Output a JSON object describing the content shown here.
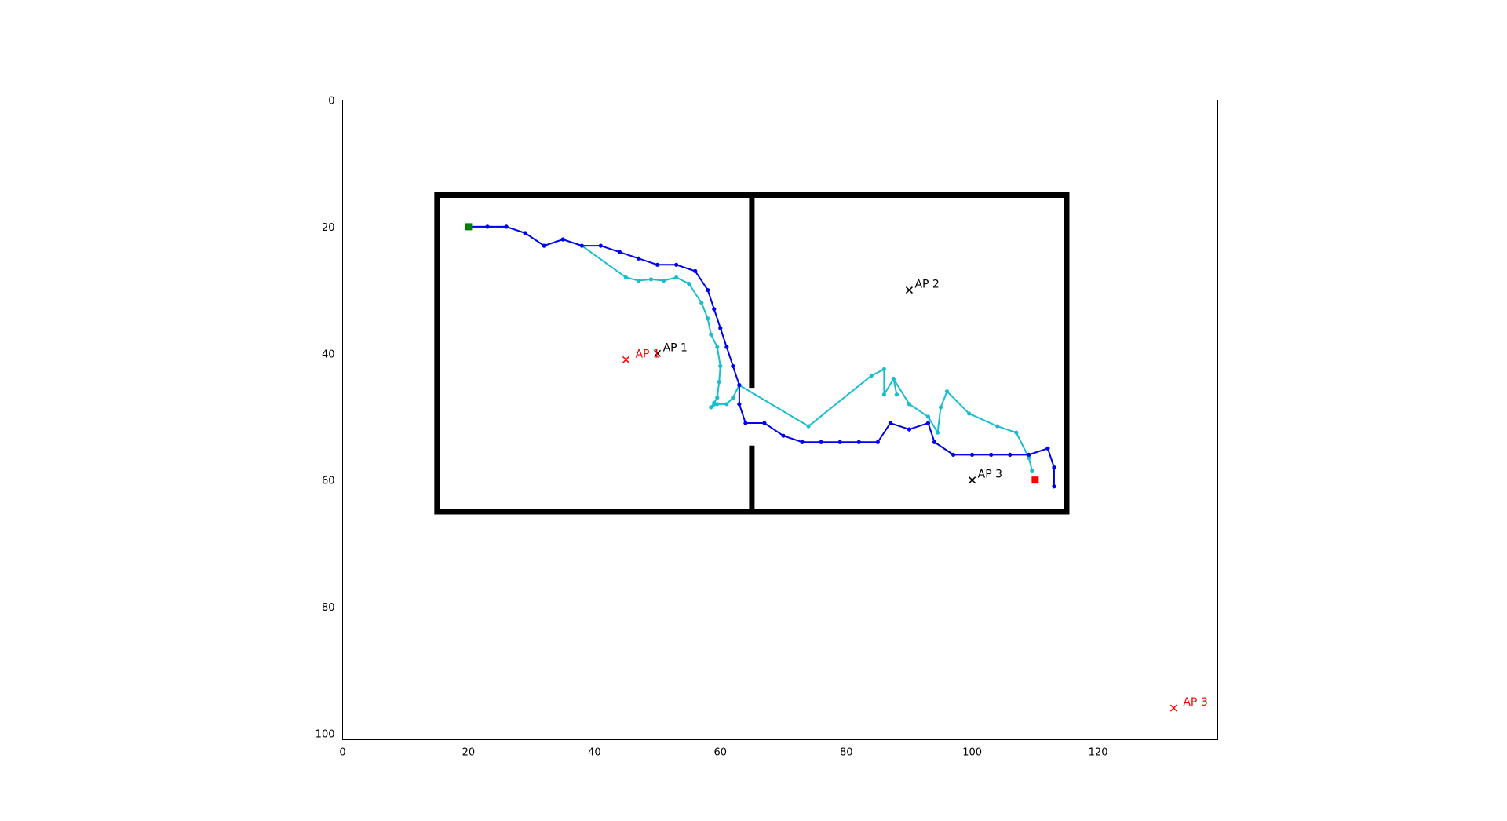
{
  "chart_data": {
    "type": "line",
    "title": "",
    "xlabel": "",
    "ylabel": "",
    "xlim": [
      0,
      139
    ],
    "ylim": [
      101,
      0
    ],
    "y_inverted": true,
    "grid": false,
    "legend": "none",
    "x_ticks": [
      0,
      20,
      40,
      60,
      80,
      100,
      120
    ],
    "y_ticks": [
      0,
      20,
      40,
      60,
      80,
      100
    ],
    "x_tick_labels": [
      "0",
      "20",
      "40",
      "60",
      "80",
      "100",
      "120"
    ],
    "y_tick_labels": [
      "0",
      "20",
      "40",
      "60",
      "80",
      "100"
    ],
    "walls": [
      {
        "x": [
          15,
          115,
          115,
          15,
          15
        ],
        "y": [
          15,
          15,
          65,
          65,
          15
        ]
      },
      {
        "x": [
          65,
          65
        ],
        "y": [
          15,
          45
        ]
      },
      {
        "x": [
          65,
          65
        ],
        "y": [
          55,
          65
        ]
      }
    ],
    "wall_color": "#000000",
    "start": {
      "x": 20,
      "y": 20,
      "color": "#007f00"
    },
    "end": {
      "x": 110,
      "y": 60,
      "color": "#ff0000"
    },
    "access_points": [
      {
        "label": "AP 1",
        "x": 50,
        "y": 40,
        "color": "#000000"
      },
      {
        "label": "AP 2",
        "x": 90,
        "y": 30,
        "color": "#000000"
      },
      {
        "label": "AP 3",
        "x": 100,
        "y": 60,
        "color": "#000000"
      },
      {
        "label": "AP 1",
        "x": 45,
        "y": 41,
        "color": "#ff0000"
      },
      {
        "label": "AP 3",
        "x": 132,
        "y": 96,
        "color": "#ff0000"
      }
    ],
    "series": [
      {
        "color": "#0000ee",
        "x": [
          20,
          23,
          26,
          29,
          32,
          35,
          38,
          41,
          44,
          47,
          50,
          53,
          56,
          58,
          59,
          60,
          61,
          62,
          63,
          63,
          64,
          67,
          70,
          73,
          76,
          79,
          82,
          85,
          87,
          90,
          93,
          94,
          97,
          100,
          103,
          106,
          109,
          112,
          113,
          113
        ],
        "y": [
          20,
          20,
          20,
          21,
          23,
          22,
          23,
          23,
          24,
          25,
          26,
          26,
          27,
          30,
          33,
          36,
          39,
          42,
          45,
          48,
          51,
          51,
          53,
          54,
          54,
          54,
          54,
          54,
          51,
          52,
          51,
          54,
          56,
          56,
          56,
          56,
          56,
          55,
          58,
          61
        ]
      },
      {
        "color": "#17becf",
        "x": [
          20,
          23,
          26,
          29,
          32,
          35,
          38,
          45,
          47,
          49,
          51,
          53,
          55,
          57,
          58,
          58.5,
          59.5,
          60,
          59.8,
          59.5,
          59,
          58.5,
          59.5,
          61,
          62,
          63,
          74,
          84,
          86,
          86,
          87.5,
          88,
          87.5,
          90,
          93,
          94.5,
          95,
          96,
          99.5,
          104,
          107,
          109,
          109.5
        ],
        "y": [
          20,
          20,
          20,
          21,
          23,
          22,
          23,
          28,
          28.5,
          28.3,
          28.5,
          28,
          29,
          32,
          34.5,
          37,
          39,
          42,
          44.5,
          47,
          47.8,
          48.5,
          48,
          48,
          47,
          45,
          51.5,
          43.5,
          42.5,
          46.5,
          44,
          46.5,
          44,
          48,
          50,
          52.5,
          48.5,
          46,
          49.5,
          51.5,
          52.5,
          56.5,
          58.5
        ]
      }
    ]
  }
}
